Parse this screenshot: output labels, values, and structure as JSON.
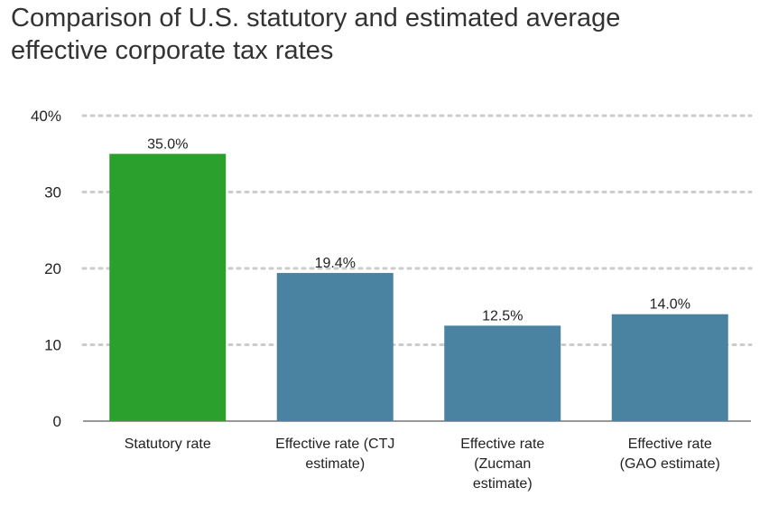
{
  "chart_data": {
    "type": "bar",
    "title": "Comparison of U.S. statutory and estimated average effective corporate tax rates",
    "title_lines": [
      "Comparison of U.S. statutory and estimated average",
      "effective corporate tax rates"
    ],
    "categories": [
      "Statutory rate",
      "Effective rate (CTJ estimate)",
      "Effective rate (Zucman estimate)",
      "Effective rate (GAO estimate)"
    ],
    "category_label_lines": [
      [
        "Statutory rate"
      ],
      [
        "Effective rate (CTJ",
        "estimate)"
      ],
      [
        "Effective rate",
        "(Zucman",
        "estimate)"
      ],
      [
        "Effective rate",
        "(GAO estimate)"
      ]
    ],
    "values": [
      35.0,
      19.4,
      12.5,
      14.0
    ],
    "value_labels": [
      "35.0%",
      "19.4%",
      "12.5%",
      "14.0%"
    ],
    "bar_colors": [
      "#2ca02c",
      "#4a82a2",
      "#4a82a2",
      "#4a82a2"
    ],
    "ylim": [
      0,
      40
    ],
    "yticks": [
      0,
      10,
      20,
      30,
      40
    ],
    "ytick_labels": [
      "0",
      "10",
      "20",
      "30",
      "40%"
    ],
    "xlabel": "",
    "ylabel": "",
    "grid": "dotted horizontal",
    "gridline_color": "#cccccc",
    "baseline_color": "#999999"
  }
}
